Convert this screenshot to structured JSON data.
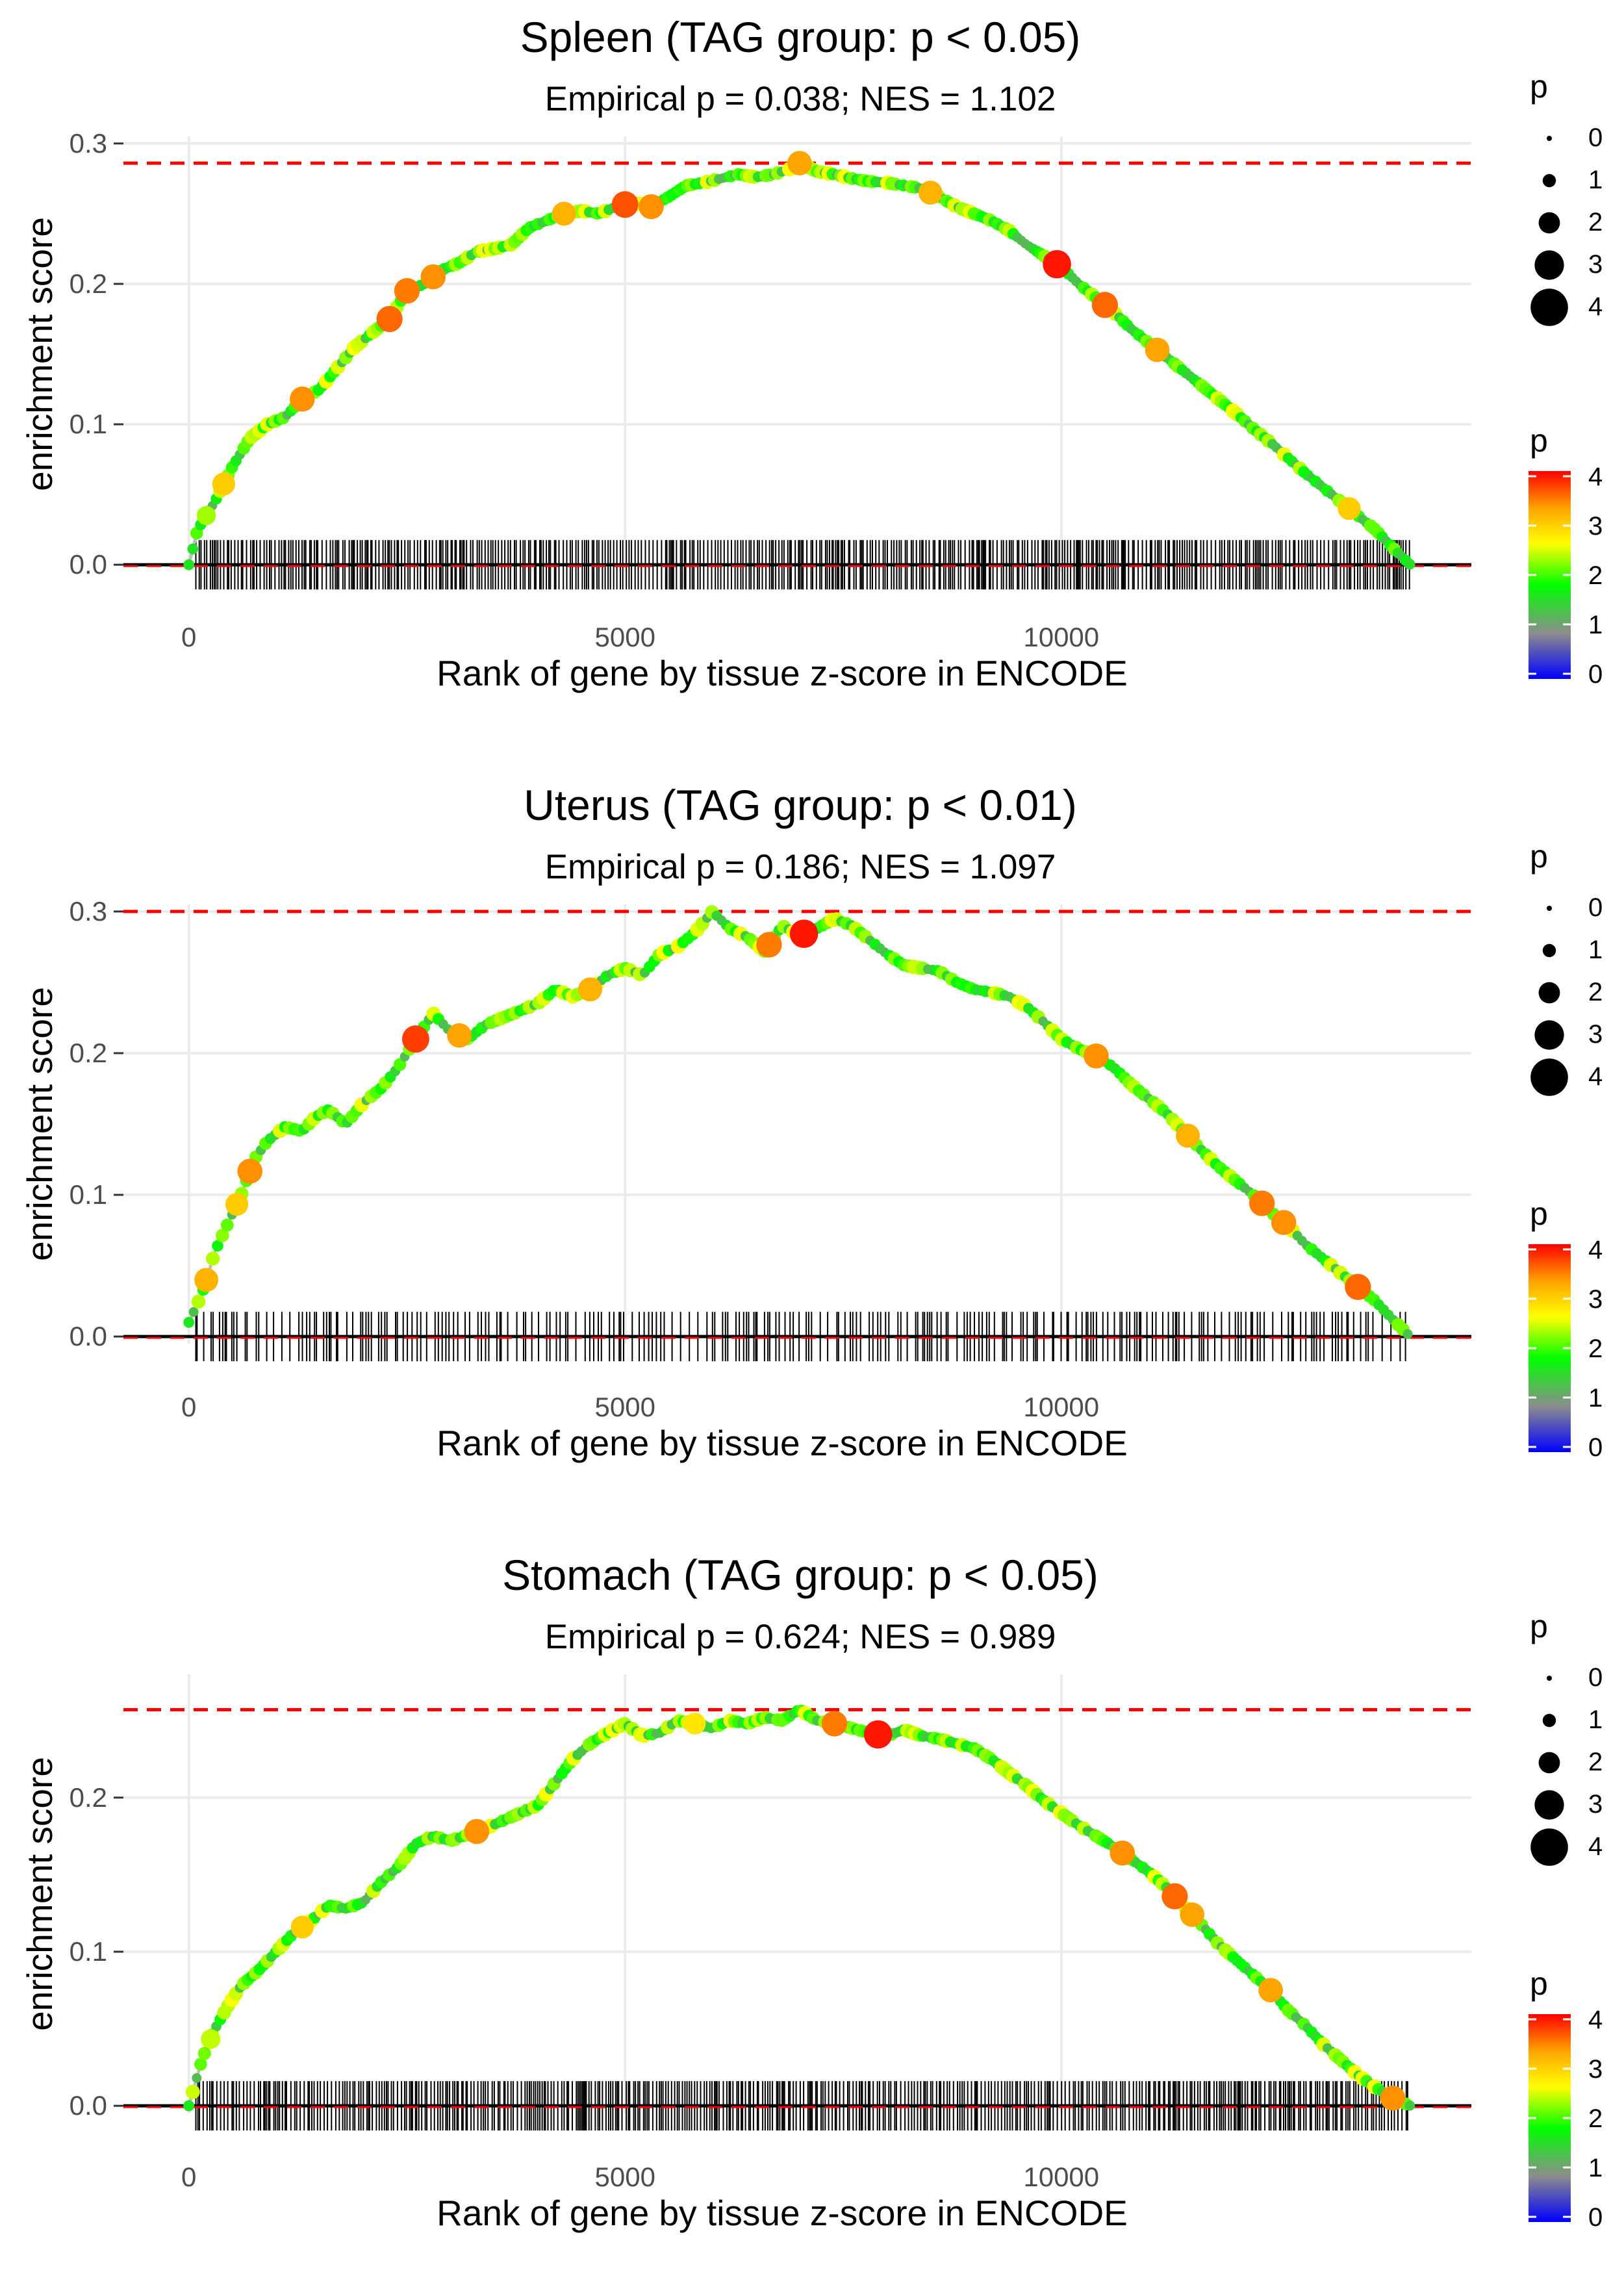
{
  "colors": {
    "dashed_line": "#ff0000",
    "curve_line": "#bebebe",
    "baseline": "#000000",
    "grid": "#ebebeb",
    "gradient_stops": [
      "#0000ff",
      "#8c8c8c",
      "#00ff00",
      "#ffff00",
      "#ffa500",
      "#ff0000"
    ]
  },
  "chart_data": [
    {
      "type": "line",
      "title": "Spleen (TAG group: p < 0.05)",
      "subtitle": "Empirical p = 0.038; NES = 1.102",
      "xlabel": "Rank of gene by tissue z-score in ENCODE",
      "ylabel": "enrichment score",
      "xlim": [
        -750,
        14700
      ],
      "ylim": [
        -0.005,
        0.305
      ],
      "x_ticks": [
        0,
        5000,
        10000
      ],
      "x_tick_labels": [
        "0",
        "5000",
        "10000"
      ],
      "y_ticks": [
        0,
        0.1,
        0.2,
        0.3
      ],
      "y_tick_labels": [
        "0.0",
        "0.1",
        "0.2",
        "0.3"
      ],
      "max_es": 0.286,
      "n_genes": 14000,
      "curve": {
        "x": [
          0,
          100,
          300,
          500,
          700,
          900,
          1100,
          1300,
          1500,
          1700,
          1900,
          2100,
          2300,
          2500,
          2700,
          2900,
          3100,
          3300,
          3500,
          3700,
          3900,
          4100,
          4300,
          4500,
          4700,
          4900,
          5100,
          5300,
          5500,
          5700,
          5900,
          6100,
          6300,
          6500,
          6700,
          6900,
          7000,
          7200,
          7400,
          7600,
          7800,
          8000,
          8200,
          8400,
          8600,
          8800,
          9000,
          9200,
          9400,
          9600,
          9800,
          10000,
          10200,
          10400,
          10600,
          10800,
          11000,
          11200,
          11400,
          11600,
          11800,
          12000,
          12200,
          12400,
          12600,
          12800,
          13000,
          13200,
          13400,
          13600,
          13800,
          14000
        ],
        "y": [
          0.0,
          0.025,
          0.045,
          0.07,
          0.09,
          0.1,
          0.105,
          0.118,
          0.125,
          0.14,
          0.155,
          0.165,
          0.175,
          0.195,
          0.2,
          0.21,
          0.215,
          0.223,
          0.225,
          0.228,
          0.24,
          0.245,
          0.25,
          0.252,
          0.25,
          0.255,
          0.258,
          0.255,
          0.262,
          0.27,
          0.272,
          0.275,
          0.278,
          0.276,
          0.278,
          0.282,
          0.286,
          0.28,
          0.278,
          0.275,
          0.273,
          0.272,
          0.27,
          0.268,
          0.262,
          0.255,
          0.25,
          0.245,
          0.238,
          0.228,
          0.22,
          0.212,
          0.2,
          0.19,
          0.18,
          0.168,
          0.158,
          0.148,
          0.138,
          0.128,
          0.118,
          0.108,
          0.097,
          0.087,
          0.076,
          0.065,
          0.055,
          0.045,
          0.035,
          0.025,
          0.012,
          0.0
        ]
      },
      "highlights": [
        {
          "x": 200,
          "p": 2.3
        },
        {
          "x": 400,
          "p": 3.0
        },
        {
          "x": 1300,
          "p": 3.4
        },
        {
          "x": 2300,
          "p": 3.6
        },
        {
          "x": 2500,
          "p": 3.5
        },
        {
          "x": 2800,
          "p": 3.4
        },
        {
          "x": 4300,
          "p": 3.2
        },
        {
          "x": 5000,
          "p": 3.7
        },
        {
          "x": 5300,
          "p": 3.4
        },
        {
          "x": 7000,
          "p": 3.3
        },
        {
          "x": 8500,
          "p": 3.2
        },
        {
          "x": 9950,
          "p": 4.0
        },
        {
          "x": 10500,
          "p": 3.6
        },
        {
          "x": 11100,
          "p": 3.3
        },
        {
          "x": 13300,
          "p": 3.0
        }
      ],
      "size_legend": {
        "title": "p",
        "labels": [
          "0",
          "1",
          "2",
          "3",
          "4"
        ]
      },
      "color_legend": {
        "title": "p",
        "labels": [
          "0",
          "1",
          "2",
          "3",
          "4"
        ]
      }
    },
    {
      "type": "line",
      "title": "Uterus (TAG group: p < 0.01)",
      "subtitle": "Empirical p = 0.186; NES = 1.097",
      "xlabel": "Rank of gene by tissue z-score in ENCODE",
      "ylabel": "enrichment score",
      "xlim": [
        -750,
        14700
      ],
      "ylim": [
        -0.005,
        0.305
      ],
      "x_ticks": [
        0,
        5000,
        10000
      ],
      "x_tick_labels": [
        "0",
        "5000",
        "10000"
      ],
      "y_ticks": [
        0,
        0.1,
        0.2,
        0.3
      ],
      "y_tick_labels": [
        "0.0",
        "0.1",
        "0.2",
        "0.3"
      ],
      "max_es": 0.3,
      "n_genes": 14000,
      "curve": {
        "x": [
          0,
          150,
          300,
          450,
          600,
          750,
          900,
          1100,
          1300,
          1450,
          1600,
          1800,
          2000,
          2200,
          2400,
          2600,
          2800,
          3000,
          3200,
          3400,
          3600,
          3800,
          4000,
          4200,
          4400,
          4600,
          4800,
          5000,
          5200,
          5400,
          5600,
          5800,
          6000,
          6200,
          6400,
          6600,
          6800,
          7000,
          7200,
          7400,
          7600,
          7800,
          8000,
          8200,
          8400,
          8600,
          8800,
          9000,
          9200,
          9400,
          9600,
          9800,
          10000,
          10200,
          10400,
          10600,
          10800,
          11000,
          11200,
          11400,
          11600,
          11800,
          12000,
          12200,
          12400,
          12600,
          12800,
          13000,
          13200,
          13400,
          13600,
          13800,
          14000
        ],
        "y": [
          0.01,
          0.03,
          0.06,
          0.08,
          0.1,
          0.125,
          0.138,
          0.148,
          0.145,
          0.155,
          0.16,
          0.15,
          0.165,
          0.175,
          0.19,
          0.21,
          0.228,
          0.215,
          0.21,
          0.22,
          0.225,
          0.23,
          0.235,
          0.245,
          0.24,
          0.245,
          0.255,
          0.26,
          0.255,
          0.27,
          0.275,
          0.285,
          0.3,
          0.288,
          0.282,
          0.272,
          0.29,
          0.283,
          0.288,
          0.295,
          0.29,
          0.28,
          0.27,
          0.262,
          0.26,
          0.258,
          0.25,
          0.245,
          0.243,
          0.24,
          0.233,
          0.222,
          0.21,
          0.203,
          0.198,
          0.19,
          0.178,
          0.168,
          0.158,
          0.145,
          0.132,
          0.12,
          0.11,
          0.1,
          0.088,
          0.078,
          0.065,
          0.055,
          0.045,
          0.035,
          0.025,
          0.012,
          0.0
        ]
      },
      "highlights": [
        {
          "x": 200,
          "p": 3.2
        },
        {
          "x": 550,
          "p": 3.0
        },
        {
          "x": 700,
          "p": 3.4
        },
        {
          "x": 2600,
          "p": 3.8
        },
        {
          "x": 3100,
          "p": 3.3
        },
        {
          "x": 4600,
          "p": 3.2
        },
        {
          "x": 6650,
          "p": 3.5
        },
        {
          "x": 7050,
          "p": 4.0
        },
        {
          "x": 10400,
          "p": 3.4
        },
        {
          "x": 11450,
          "p": 3.2
        },
        {
          "x": 12300,
          "p": 3.5
        },
        {
          "x": 12550,
          "p": 3.4
        },
        {
          "x": 13400,
          "p": 3.6
        }
      ],
      "size_legend": {
        "title": "p",
        "labels": [
          "0",
          "1",
          "2",
          "3",
          "4"
        ]
      },
      "color_legend": {
        "title": "p",
        "labels": [
          "0",
          "1",
          "2",
          "3",
          "4"
        ]
      }
    },
    {
      "type": "line",
      "title": "Stomach (TAG group: p < 0.05)",
      "subtitle": "Empirical p = 0.624; NES = 0.989",
      "xlabel": "Rank of gene by tissue z-score in ENCODE",
      "ylabel": "enrichment score",
      "xlim": [
        -750,
        14700
      ],
      "ylim": [
        -0.005,
        0.28
      ],
      "x_ticks": [
        0,
        5000,
        10000
      ],
      "x_tick_labels": [
        "0",
        "5000",
        "10000"
      ],
      "y_ticks": [
        0,
        0.1,
        0.2
      ],
      "y_tick_labels": [
        "0.0",
        "0.1",
        "0.2"
      ],
      "max_es": 0.257,
      "n_genes": 14000,
      "curve": {
        "x": [
          0,
          150,
          300,
          450,
          600,
          800,
          1000,
          1200,
          1400,
          1600,
          1800,
          2000,
          2200,
          2400,
          2600,
          2800,
          3000,
          3200,
          3400,
          3600,
          3800,
          4000,
          4200,
          4400,
          4600,
          4800,
          5000,
          5200,
          5400,
          5600,
          5800,
          6000,
          6200,
          6400,
          6600,
          6800,
          7000,
          7200,
          7400,
          7600,
          7800,
          8000,
          8200,
          8400,
          8600,
          8800,
          9000,
          9200,
          9400,
          9600,
          9800,
          10000,
          10200,
          10400,
          10600,
          10800,
          11000,
          11200,
          11400,
          11600,
          11800,
          12000,
          12200,
          12400,
          12600,
          12800,
          13000,
          13200,
          13400,
          13600,
          13800,
          14000
        ],
        "y": [
          0.0,
          0.03,
          0.05,
          0.065,
          0.078,
          0.088,
          0.1,
          0.112,
          0.12,
          0.13,
          0.128,
          0.132,
          0.145,
          0.155,
          0.17,
          0.175,
          0.172,
          0.176,
          0.18,
          0.185,
          0.19,
          0.195,
          0.21,
          0.225,
          0.235,
          0.242,
          0.248,
          0.24,
          0.242,
          0.25,
          0.248,
          0.245,
          0.25,
          0.248,
          0.252,
          0.25,
          0.257,
          0.25,
          0.248,
          0.245,
          0.242,
          0.24,
          0.244,
          0.24,
          0.238,
          0.235,
          0.232,
          0.225,
          0.216,
          0.208,
          0.198,
          0.19,
          0.182,
          0.175,
          0.168,
          0.16,
          0.152,
          0.142,
          0.13,
          0.118,
          0.105,
          0.095,
          0.085,
          0.075,
          0.062,
          0.052,
          0.04,
          0.03,
          0.02,
          0.012,
          0.005,
          0.0
        ]
      },
      "highlights": [
        {
          "x": 250,
          "p": 2.4
        },
        {
          "x": 1300,
          "p": 3.0
        },
        {
          "x": 3300,
          "p": 3.4
        },
        {
          "x": 5800,
          "p": 2.8
        },
        {
          "x": 7400,
          "p": 3.5
        },
        {
          "x": 7900,
          "p": 4.0
        },
        {
          "x": 10700,
          "p": 3.4
        },
        {
          "x": 11300,
          "p": 3.6
        },
        {
          "x": 11500,
          "p": 3.3
        },
        {
          "x": 12400,
          "p": 3.3
        },
        {
          "x": 13800,
          "p": 3.4
        }
      ],
      "size_legend": {
        "title": "p",
        "labels": [
          "0",
          "1",
          "2",
          "3",
          "4"
        ]
      },
      "color_legend": {
        "title": "p",
        "labels": [
          "0",
          "1",
          "2",
          "3",
          "4"
        ]
      }
    }
  ]
}
